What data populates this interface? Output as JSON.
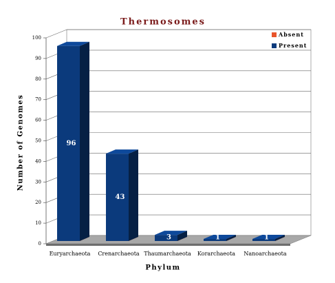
{
  "chart_data": {
    "type": "bar3d",
    "title": "Thermosomes",
    "x_label": "Phylum",
    "y_label": "Number of Genomes",
    "categories": [
      "Euryarchaeota",
      "Crenarchaeota",
      "Thaumarchaeota",
      "Korarchaeota",
      "Nanoarchaeota"
    ],
    "series": [
      {
        "name": "Absent",
        "color": "#e8542a",
        "values": [
          0,
          0,
          0,
          0,
          0
        ]
      },
      {
        "name": "Present",
        "color": "#0b3a7c",
        "values": [
          96,
          43,
          3,
          1,
          1
        ]
      }
    ],
    "ylim": [
      0,
      100
    ],
    "yticks": [
      0,
      10,
      20,
      30,
      40,
      50,
      60,
      70,
      80,
      90,
      100
    ],
    "grid": true,
    "legend": "top-right"
  }
}
